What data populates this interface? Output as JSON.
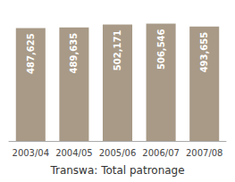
{
  "chart_data": {
    "type": "bar",
    "title": "Transwa: Total patronage",
    "categories": [
      "2003/04",
      "2004/05",
      "2005/06",
      "2006/07",
      "2007/08"
    ],
    "values": [
      487625,
      489635,
      502171,
      506546,
      493655
    ],
    "value_labels": [
      "487,625",
      "489,635",
      "502,171",
      "506,546",
      "493,655"
    ],
    "color": "#a89a87",
    "ylim": [
      0,
      570000
    ],
    "data_labels": true,
    "tick_labels": "x",
    "grid": false
  }
}
